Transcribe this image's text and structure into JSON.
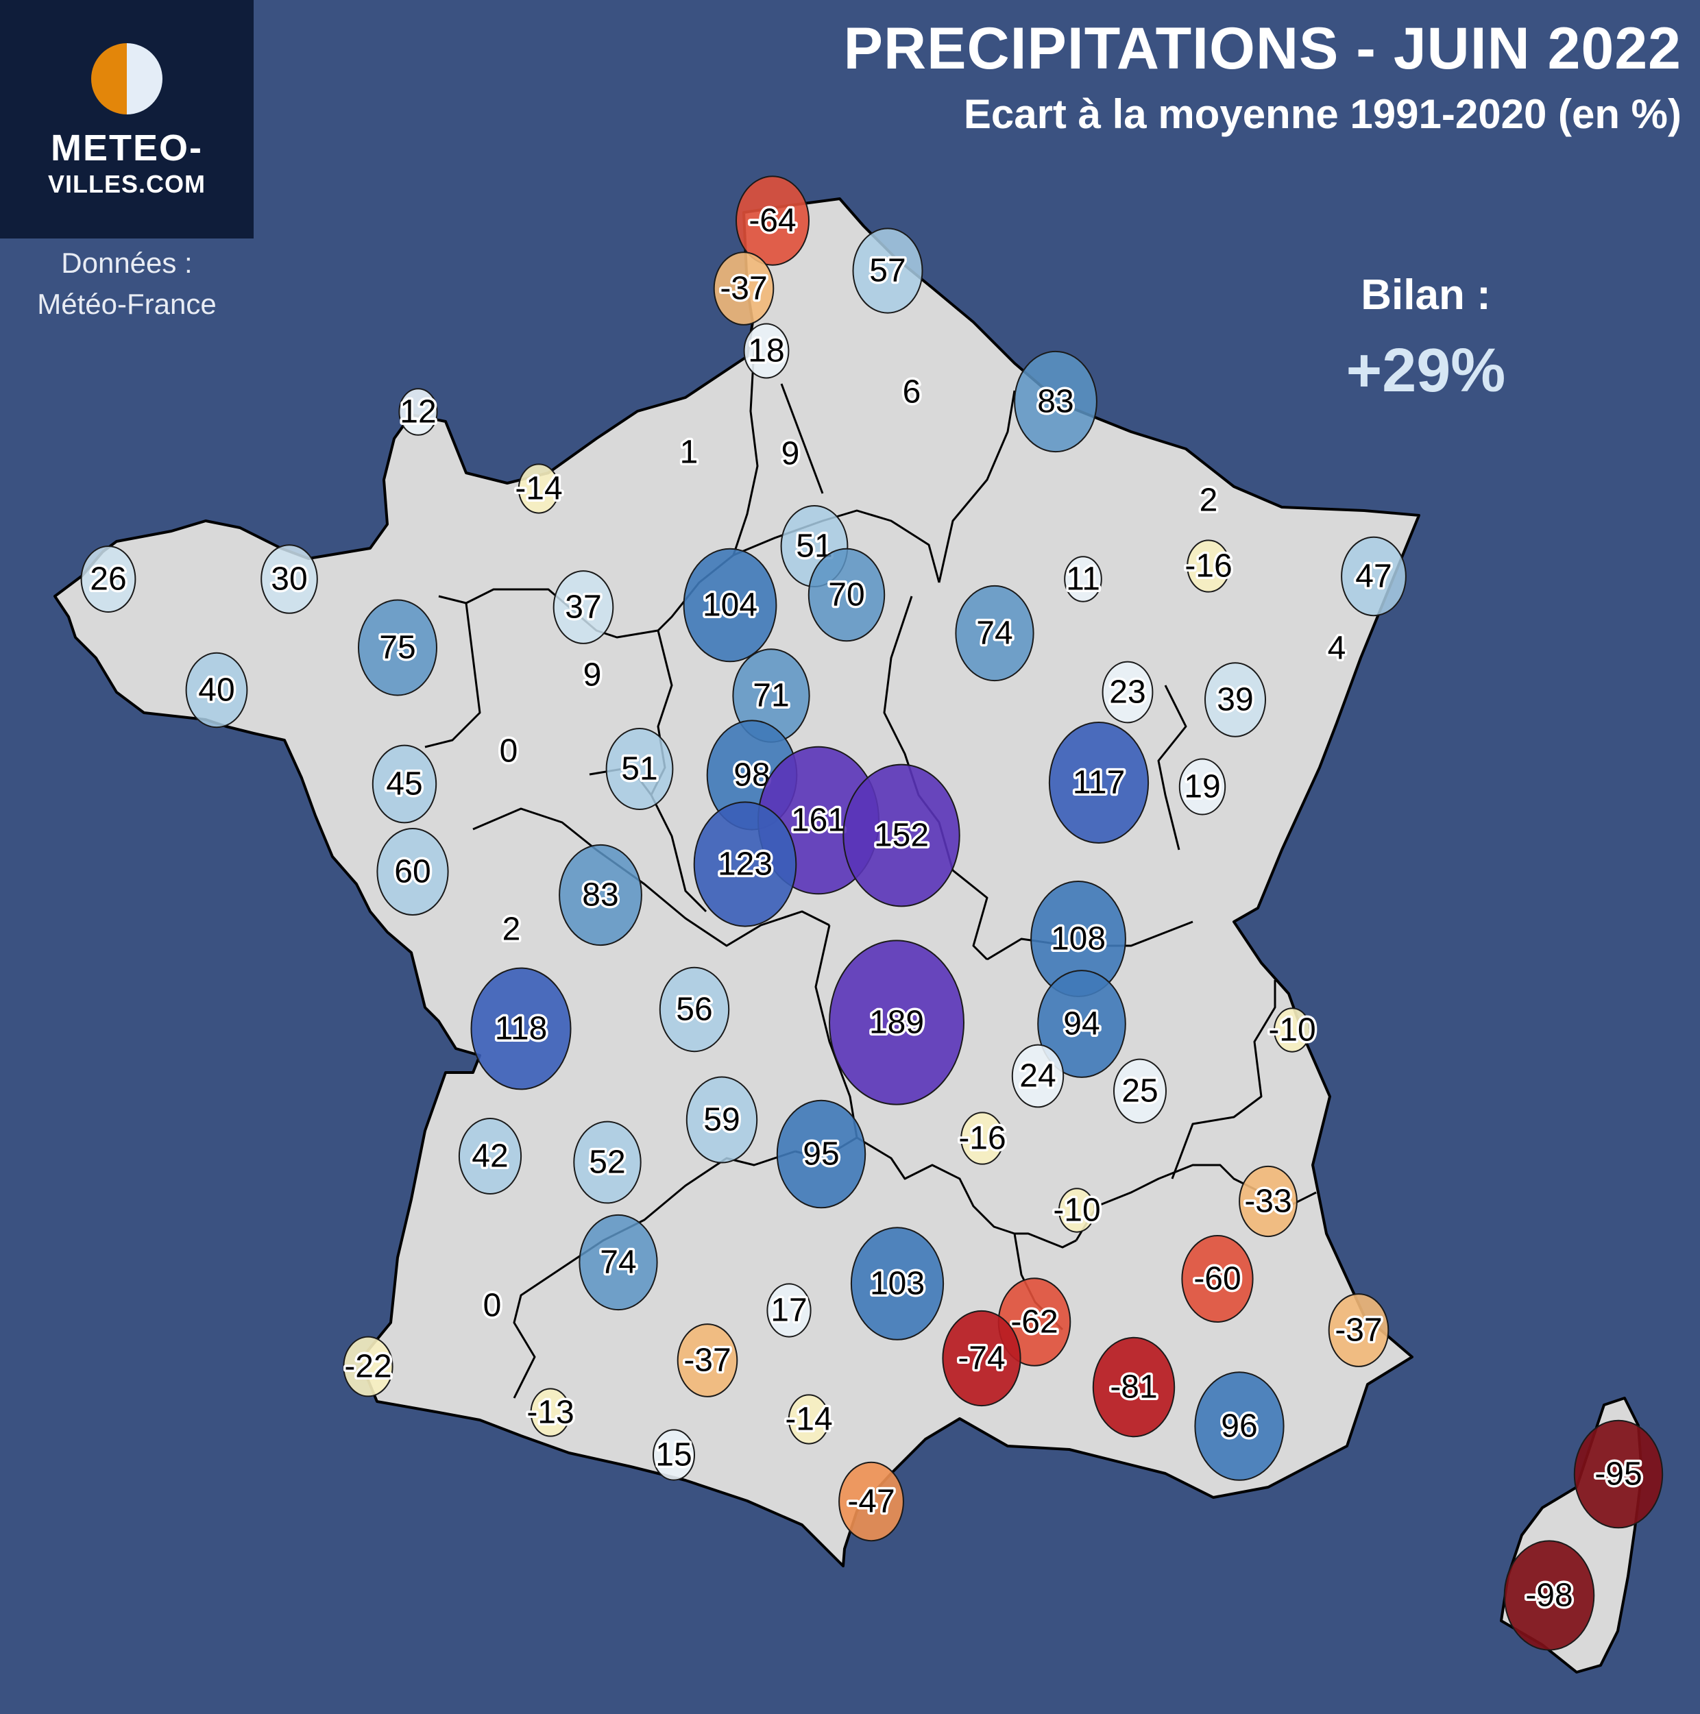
{
  "header": {
    "title": "PRECIPITATIONS - JUIN 2022",
    "subtitle": "Ecart à la moyenne 1991-2020 (en %)"
  },
  "logo": {
    "line1": "METEO-",
    "line2": "VILLES.COM"
  },
  "source": {
    "line1": "Données :",
    "line2": "Météo-France"
  },
  "bilan": {
    "label": "Bilan :",
    "value": "+29%"
  },
  "colors": {
    "background": "#3b5281",
    "land": "#d9d9d9",
    "logo_box": "#0f1d3a",
    "logo_orange": "#e3860a",
    "bilan_value": "#d6e6f4"
  },
  "stations": [
    {
      "v": -64
    },
    {
      "v": -37
    },
    {
      "v": 57
    },
    {
      "v": 18
    },
    {
      "v": 6
    },
    {
      "v": 83
    },
    {
      "v": 12
    },
    {
      "v": -14
    },
    {
      "v": 1
    },
    {
      "v": 9
    },
    {
      "v": 2
    },
    {
      "v": 26
    },
    {
      "v": 30
    },
    {
      "v": 37
    },
    {
      "v": 104
    },
    {
      "v": 51
    },
    {
      "v": 70
    },
    {
      "v": 11
    },
    {
      "v": -16
    },
    {
      "v": 47
    },
    {
      "v": 75
    },
    {
      "v": 40
    },
    {
      "v": 9
    },
    {
      "v": 71
    },
    {
      "v": 74
    },
    {
      "v": 4
    },
    {
      "v": 23
    },
    {
      "v": 39
    },
    {
      "v": 0
    },
    {
      "v": 45
    },
    {
      "v": 51
    },
    {
      "v": 98
    },
    {
      "v": 117
    },
    {
      "v": 19
    },
    {
      "v": 161
    },
    {
      "v": 152
    },
    {
      "v": 123
    },
    {
      "v": 60
    },
    {
      "v": 83
    },
    {
      "v": 2
    },
    {
      "v": 108
    },
    {
      "v": 118
    },
    {
      "v": 56
    },
    {
      "v": 189
    },
    {
      "v": 94
    },
    {
      "v": -10
    },
    {
      "v": 24
    },
    {
      "v": 25
    },
    {
      "v": 59
    },
    {
      "v": 42
    },
    {
      "v": 52
    },
    {
      "v": 95
    },
    {
      "v": -16
    },
    {
      "v": -33
    },
    {
      "v": -10
    },
    {
      "v": 74
    },
    {
      "v": -60
    },
    {
      "v": 0
    },
    {
      "v": 17
    },
    {
      "v": 103
    },
    {
      "v": -62
    },
    {
      "v": -37
    },
    {
      "v": -74
    },
    {
      "v": -37
    },
    {
      "v": -22
    },
    {
      "v": -81
    },
    {
      "v": -13
    },
    {
      "v": -14
    },
    {
      "v": 96
    },
    {
      "v": 15
    },
    {
      "v": -47
    },
    {
      "v": -95
    },
    {
      "v": -98
    }
  ]
}
